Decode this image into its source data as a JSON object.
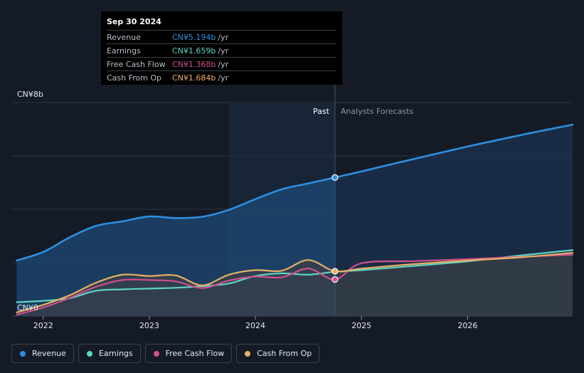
{
  "colors": {
    "revenue": "#2d8fe0",
    "earnings": "#5fd3c4",
    "free_cash_flow": "#d0508c",
    "cash_from_op": "#e9b064",
    "background": "#151b26"
  },
  "tooltip": {
    "date": "Sep 30 2024",
    "unit": "/yr",
    "rows": [
      {
        "name": "Revenue",
        "value": "CN¥5.194b",
        "color": "#2d8fe0"
      },
      {
        "name": "Earnings",
        "value": "CN¥1.659b",
        "color": "#5fd3c4"
      },
      {
        "name": "Free Cash Flow",
        "value": "CN¥1.368b",
        "color": "#d0508c"
      },
      {
        "name": "Cash From Op",
        "value": "CN¥1.684b",
        "color": "#e9b064"
      }
    ]
  },
  "legend": [
    {
      "label": "Revenue",
      "color": "#2d8fe0"
    },
    {
      "label": "Earnings",
      "color": "#5fd3c4"
    },
    {
      "label": "Free Cash Flow",
      "color": "#d0508c"
    },
    {
      "label": "Cash From Op",
      "color": "#e9b064"
    }
  ],
  "chart_data": {
    "type": "line",
    "y_tick_labels": [
      "CN¥0",
      "CN¥8b"
    ],
    "ylim": [
      0,
      8
    ],
    "x_tick_labels": [
      "2022",
      "2023",
      "2024",
      "2025",
      "2026"
    ],
    "xlim": [
      2021.7,
      2026.99
    ],
    "past_label": "Past",
    "forecast_label": "Analysts Forecasts",
    "divider_x": 2024.75,
    "highlight_start_x": 2023.75,
    "gridlines": [
      0,
      2,
      4,
      6,
      8
    ],
    "series": [
      {
        "name": "Revenue",
        "color": "#2d8fe0",
        "x": [
          2021.75,
          2022.0,
          2022.25,
          2022.5,
          2022.75,
          2023.0,
          2023.25,
          2023.5,
          2023.75,
          2024.0,
          2024.25,
          2024.5,
          2024.75,
          2025.0,
          2025.5,
          2026.0,
          2026.5,
          2026.99
        ],
        "y": [
          2.08,
          2.4,
          2.95,
          3.38,
          3.55,
          3.73,
          3.67,
          3.72,
          3.98,
          4.38,
          4.75,
          4.97,
          5.19,
          5.42,
          5.89,
          6.35,
          6.78,
          7.17
        ]
      },
      {
        "name": "Earnings",
        "color": "#5fd3c4",
        "x": [
          2021.75,
          2022.0,
          2022.25,
          2022.5,
          2022.75,
          2023.0,
          2023.25,
          2023.5,
          2023.75,
          2024.0,
          2024.25,
          2024.5,
          2024.75,
          2025.0,
          2025.5,
          2026.0,
          2026.5,
          2026.99
        ],
        "y": [
          0.52,
          0.57,
          0.67,
          0.95,
          1.0,
          1.03,
          1.06,
          1.12,
          1.22,
          1.5,
          1.6,
          1.55,
          1.66,
          1.72,
          1.88,
          2.05,
          2.27,
          2.47
        ]
      },
      {
        "name": "Free Cash Flow",
        "color": "#d0508c",
        "x": [
          2021.75,
          2022.0,
          2022.25,
          2022.5,
          2022.75,
          2023.0,
          2023.25,
          2023.5,
          2023.75,
          2024.0,
          2024.25,
          2024.5,
          2024.75,
          2025.0,
          2025.5,
          2026.0,
          2026.5,
          2026.99
        ],
        "y": [
          0.05,
          0.32,
          0.68,
          1.1,
          1.35,
          1.35,
          1.3,
          1.05,
          1.33,
          1.48,
          1.45,
          1.78,
          1.37,
          1.98,
          2.06,
          2.13,
          2.22,
          2.3
        ]
      },
      {
        "name": "Cash From Op",
        "color": "#e9b064",
        "x": [
          2021.75,
          2022.0,
          2022.25,
          2022.5,
          2022.75,
          2023.0,
          2023.25,
          2023.5,
          2023.75,
          2024.0,
          2024.25,
          2024.5,
          2024.75,
          2025.0,
          2025.5,
          2026.0,
          2026.5,
          2026.99
        ],
        "y": [
          0.14,
          0.42,
          0.78,
          1.25,
          1.55,
          1.5,
          1.52,
          1.15,
          1.55,
          1.72,
          1.7,
          2.1,
          1.68,
          1.78,
          1.95,
          2.08,
          2.2,
          2.37
        ]
      }
    ]
  }
}
